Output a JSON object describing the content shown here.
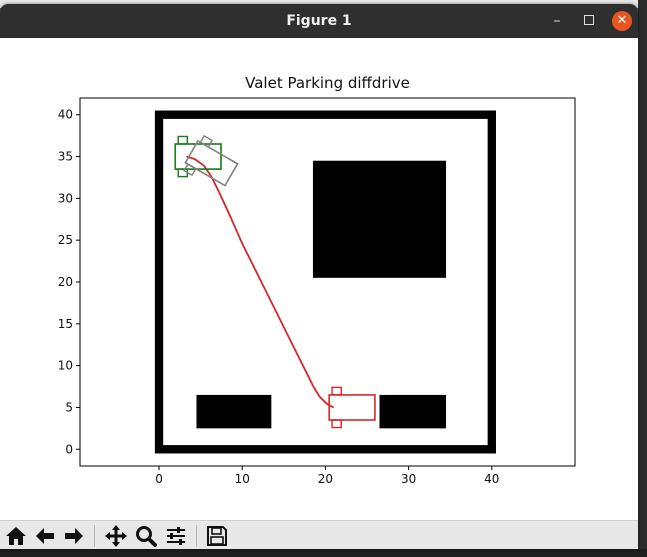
{
  "window": {
    "title": "Figure 1",
    "buttons": {
      "minimize": "–",
      "maximize": "",
      "close": "✕"
    }
  },
  "toolbar": {
    "items": [
      {
        "name": "home-icon",
        "icon": "home"
      },
      {
        "name": "back-icon",
        "icon": "arrow-left"
      },
      {
        "name": "forward-icon",
        "icon": "arrow-right"
      },
      {
        "name": "pan-icon",
        "icon": "move"
      },
      {
        "name": "zoom-icon",
        "icon": "magnifier"
      },
      {
        "name": "configure-subplots-icon",
        "icon": "sliders"
      },
      {
        "name": "save-icon",
        "icon": "floppy"
      }
    ]
  },
  "chart_data": {
    "type": "line",
    "title": "Valet Parking diffdrive",
    "xlabel": "",
    "ylabel": "",
    "xlim": [
      -9.5,
      50
    ],
    "ylim": [
      -2,
      42
    ],
    "xticks": [
      "0",
      "10",
      "20",
      "30",
      "40"
    ],
    "yticks": [
      "0",
      "5",
      "10",
      "15",
      "20",
      "25",
      "30",
      "35",
      "40"
    ],
    "xtick_values": [
      0,
      10,
      20,
      30,
      40
    ],
    "ytick_values": [
      0,
      5,
      10,
      15,
      20,
      25,
      30,
      35,
      40
    ],
    "obstacles": [
      {
        "name": "top-wall",
        "x0": 0,
        "y0": 39.5,
        "x1": 40.5,
        "y1": 40.5
      },
      {
        "name": "bottom-wall",
        "x0": 0,
        "y0": -0.5,
        "x1": 40.5,
        "y1": 0.5
      },
      {
        "name": "left-wall",
        "x0": -0.5,
        "y0": -0.5,
        "x1": 0.5,
        "y1": 40.5
      },
      {
        "name": "right-wall",
        "x0": 39.5,
        "y0": -0.5,
        "x1": 40.5,
        "y1": 40.5
      },
      {
        "name": "large-block",
        "x0": 18.5,
        "y0": 20.5,
        "x1": 34.5,
        "y1": 34.5
      },
      {
        "name": "bottom-left-block",
        "x0": 4.5,
        "y0": 2.5,
        "x1": 13.5,
        "y1": 6.5
      },
      {
        "name": "bottom-right-block",
        "x0": 26.5,
        "y0": 2.5,
        "x1": 34.5,
        "y1": 6.5
      }
    ],
    "path": {
      "color": "#d62728",
      "x": [
        21,
        20.2,
        19.3,
        18.6,
        18,
        17.3,
        16,
        14,
        12,
        10,
        8.5,
        7.2,
        6.3,
        5.4,
        4.3,
        3.3
      ],
      "y": [
        5,
        5.4,
        6.3,
        7.4,
        8.6,
        10,
        12.6,
        16.6,
        20.6,
        24.6,
        28,
        30.8,
        32.6,
        33.9,
        34.7,
        35
      ]
    },
    "vehicles": [
      {
        "name": "start-vehicle",
        "color": "#d62728",
        "x": 23.2,
        "y": 5,
        "heading_deg": 0,
        "length": 5.5,
        "width": 3
      },
      {
        "name": "goal-vehicle",
        "color": "#1a7a1a",
        "x": 4.7,
        "y": 35,
        "heading_deg": 0,
        "length": 5.5,
        "width": 3
      },
      {
        "name": "current-vehicle",
        "color": "#808080",
        "x": 6.3,
        "y": 34.2,
        "heading_deg": -30,
        "length": 5.5,
        "width": 3
      }
    ]
  }
}
